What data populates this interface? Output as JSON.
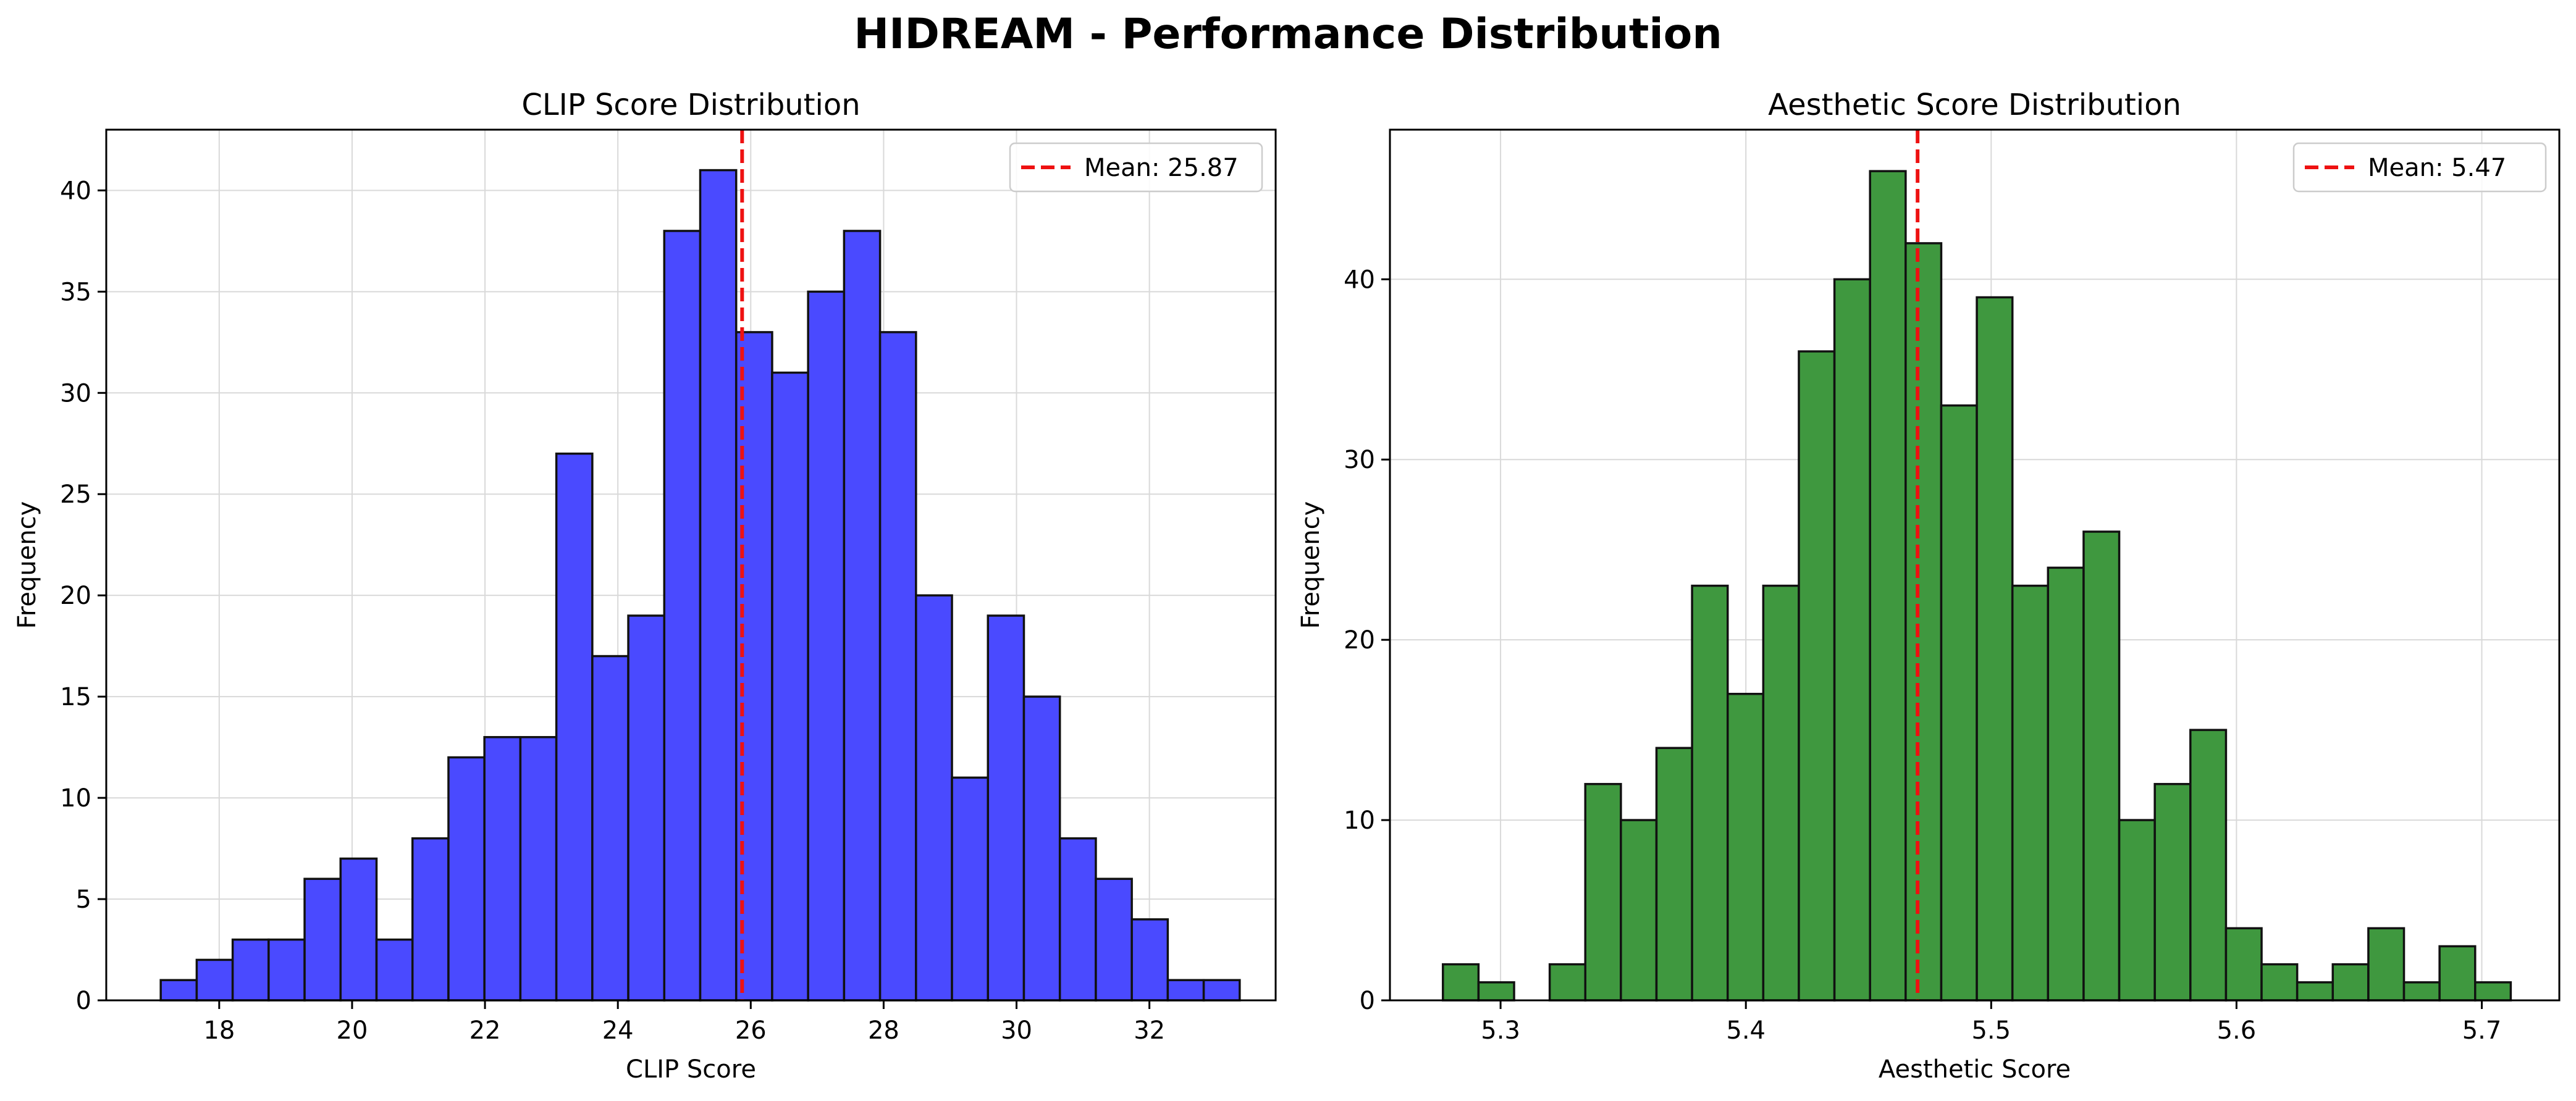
{
  "figure": {
    "suptitle": "HIDREAM - Performance Distribution"
  },
  "chart_data": [
    {
      "type": "bar",
      "subtype": "histogram",
      "title": "CLIP Score Distribution",
      "xlabel": "CLIP Score",
      "ylabel": "Frequency",
      "bin_start": 17.12,
      "bin_width": 0.5413,
      "counts": [
        1,
        2,
        3,
        3,
        6,
        7,
        3,
        8,
        12,
        13,
        13,
        27,
        17,
        19,
        38,
        41,
        33,
        31,
        35,
        38,
        33,
        20,
        11,
        19,
        15,
        8,
        6,
        4,
        1,
        1
      ],
      "xlim": [
        16.3,
        33.9
      ],
      "ylim": [
        0,
        43
      ],
      "xticks": [
        18,
        20,
        22,
        24,
        26,
        28,
        30,
        32
      ],
      "yticks": [
        0,
        5,
        10,
        15,
        20,
        25,
        30,
        35,
        40
      ],
      "mean": 25.87,
      "legend": {
        "label": "Mean: 25.87",
        "position": "upper right"
      },
      "bar_color": "#4a4aff",
      "edge_color": "#111111",
      "mean_line_color": "#ee1111",
      "grid": true
    },
    {
      "type": "bar",
      "subtype": "histogram",
      "title": "Aesthetic Score Distribution",
      "xlabel": "Aesthetic Score",
      "ylabel": "Frequency",
      "bin_start": 5.2765,
      "bin_width": 0.01451,
      "counts": [
        2,
        1,
        0,
        2,
        12,
        10,
        14,
        23,
        17,
        23,
        36,
        40,
        46,
        42,
        33,
        39,
        23,
        24,
        26,
        10,
        12,
        15,
        4,
        2,
        1,
        2,
        4,
        1,
        3,
        1
      ],
      "xlim": [
        5.2549,
        5.7316
      ],
      "ylim": [
        0,
        48.3
      ],
      "xticks": [
        5.3,
        5.4,
        5.5,
        5.6,
        5.7
      ],
      "yticks": [
        0,
        10,
        20,
        30,
        40
      ],
      "mean": 5.47,
      "legend": {
        "label": "Mean: 5.47",
        "position": "upper right"
      },
      "bar_color": "#3f983f",
      "edge_color": "#111111",
      "mean_line_color": "#ee1111",
      "grid": true
    }
  ]
}
